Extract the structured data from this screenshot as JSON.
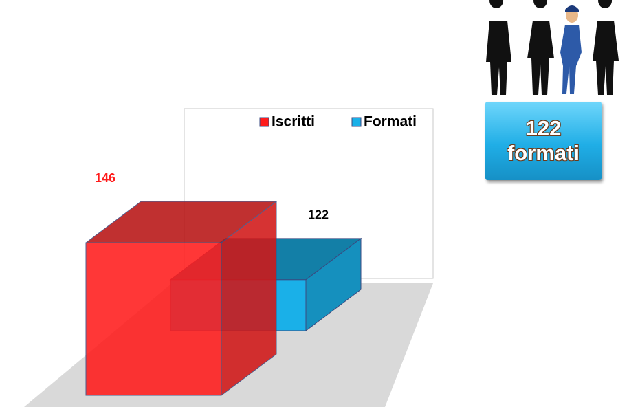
{
  "chart_data": {
    "type": "bar3d",
    "legend": "top",
    "series": [
      {
        "name": "Iscritti",
        "color": "#ff1c1c",
        "label_color": "#ff1c1c",
        "values": [
          146
        ]
      },
      {
        "name": "Formati",
        "color": "#1ab0e8",
        "label_color": "#000000",
        "values": [
          122
        ]
      }
    ]
  },
  "badge": {
    "value": 122,
    "label": "formati"
  }
}
